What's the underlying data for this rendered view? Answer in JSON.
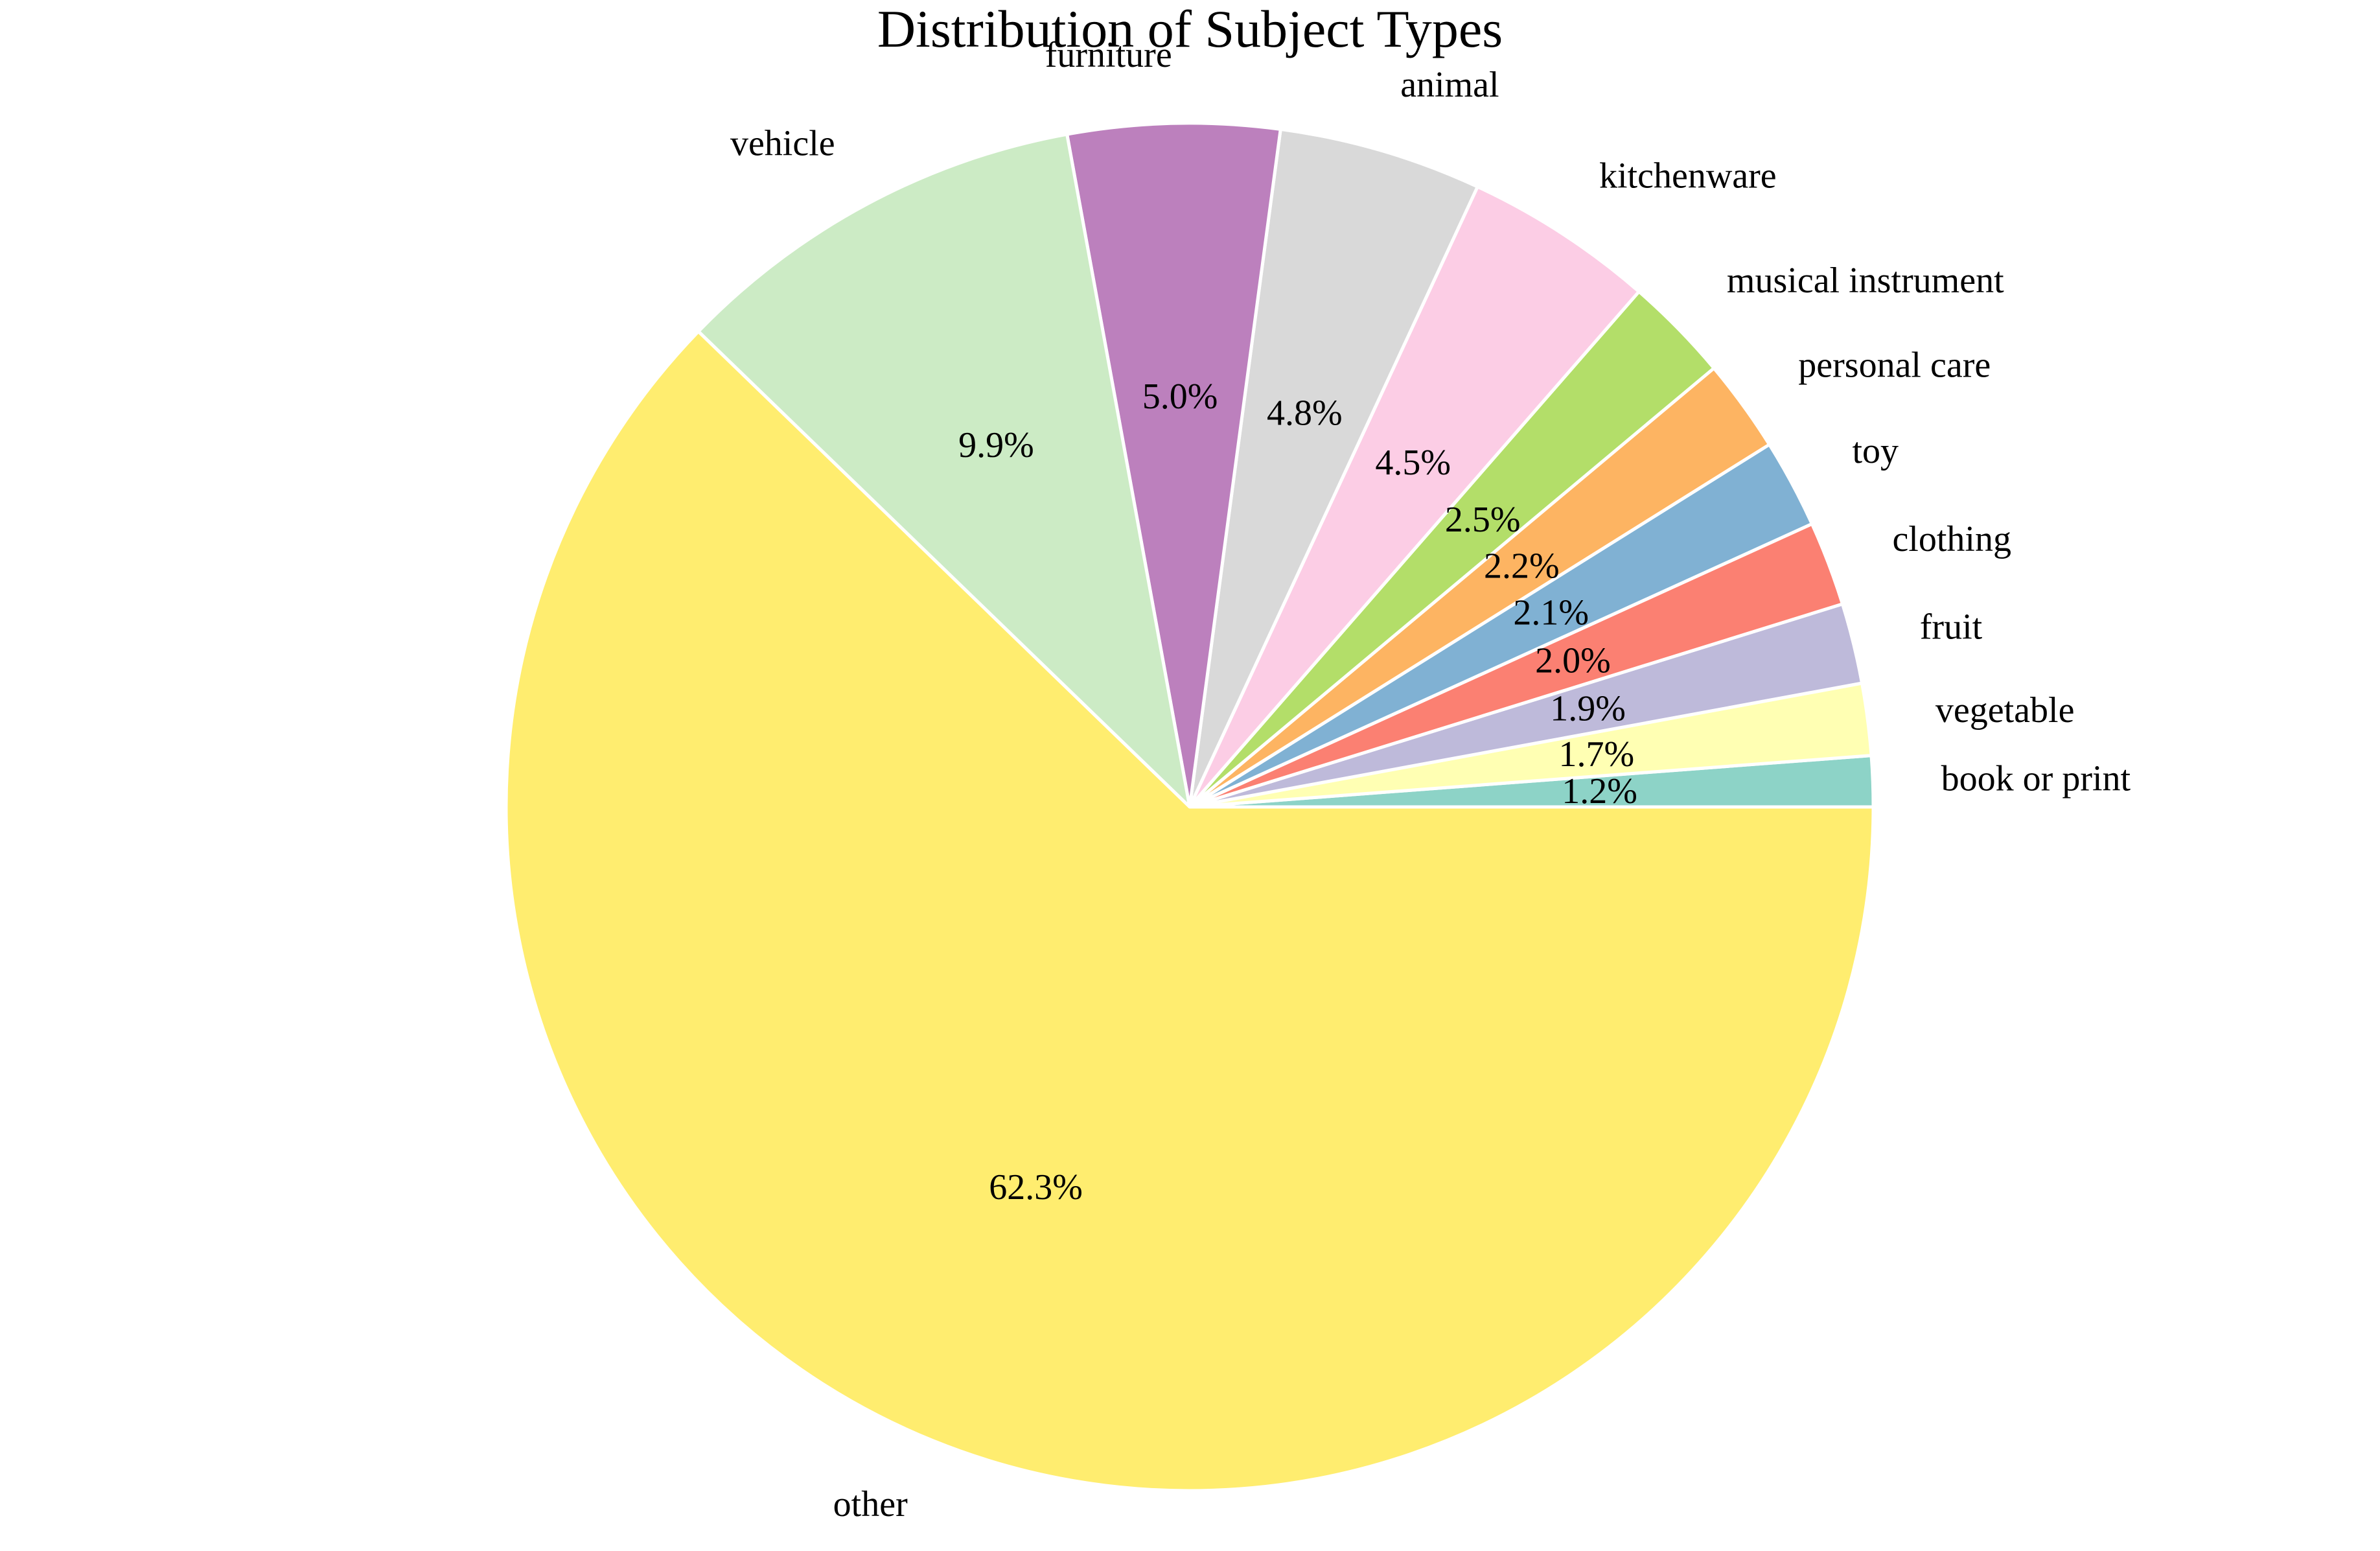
{
  "chart_data": {
    "type": "pie",
    "title": "Distribution of Subject Types",
    "start_angle_deg": 0,
    "direction": "counterclockwise",
    "slices": [
      {
        "label": "book or print",
        "value": 1.2,
        "pct_label": "1.2%",
        "color": "#8dd3c7"
      },
      {
        "label": "vegetable",
        "value": 1.7,
        "pct_label": "1.7%",
        "color": "#ffffb3"
      },
      {
        "label": "fruit",
        "value": 1.9,
        "pct_label": "1.9%",
        "color": "#bebada"
      },
      {
        "label": "clothing",
        "value": 2.0,
        "pct_label": "2.0%",
        "color": "#fb8072"
      },
      {
        "label": "toy",
        "value": 2.1,
        "pct_label": "2.1%",
        "color": "#80b1d3"
      },
      {
        "label": "personal care",
        "value": 2.2,
        "pct_label": "2.2%",
        "color": "#fdb462"
      },
      {
        "label": "musical instrument",
        "value": 2.5,
        "pct_label": "2.5%",
        "color": "#b3de69"
      },
      {
        "label": "kitchenware",
        "value": 4.5,
        "pct_label": "4.5%",
        "color": "#fccde5"
      },
      {
        "label": "animal",
        "value": 4.8,
        "pct_label": "4.8%",
        "color": "#d9d9d9"
      },
      {
        "label": "furniture",
        "value": 5.0,
        "pct_label": "5.0%",
        "color": "#bc80bd"
      },
      {
        "label": "vehicle",
        "value": 9.9,
        "pct_label": "9.9%",
        "color": "#ccebc5"
      },
      {
        "label": "other",
        "value": 62.3,
        "pct_label": "62.3%",
        "color": "#ffed6f"
      }
    ],
    "edge_color": "#ffffff"
  }
}
